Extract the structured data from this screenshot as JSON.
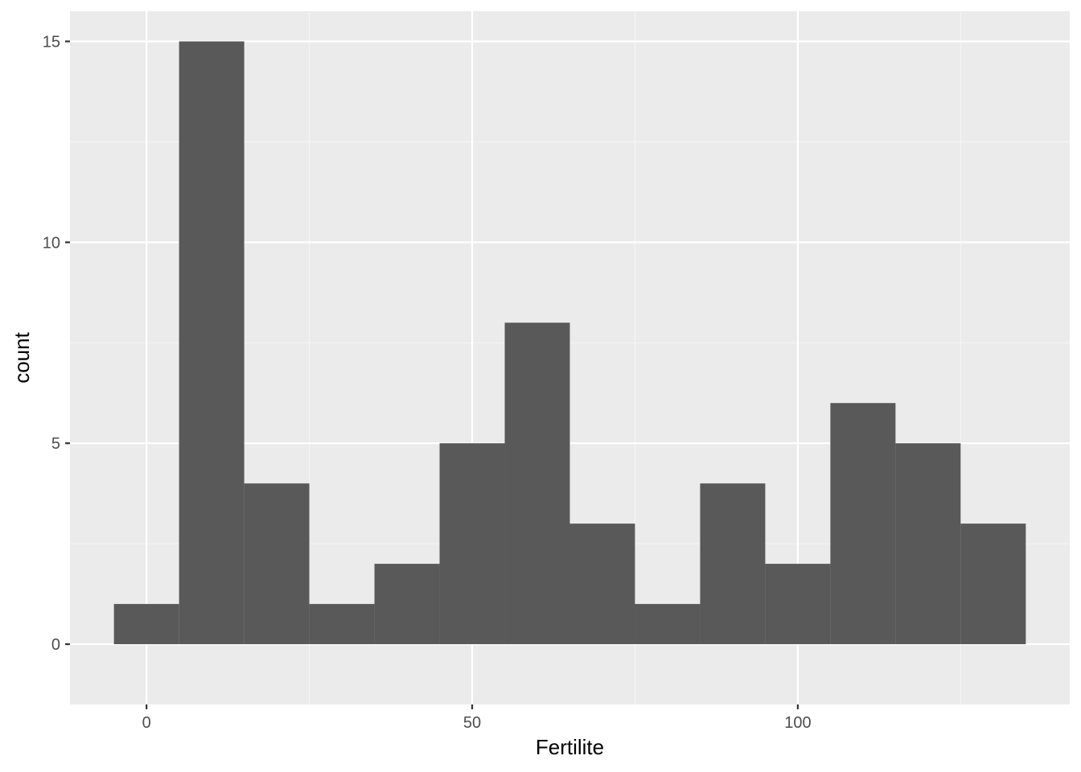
{
  "chart_data": {
    "type": "bar",
    "geom": "histogram",
    "xlabel": "Fertilite",
    "ylabel": "count",
    "bin_width": 10,
    "bins": [
      {
        "x_min": -5,
        "x_max": 5,
        "count": 1
      },
      {
        "x_min": 5,
        "x_max": 15,
        "count": 15
      },
      {
        "x_min": 15,
        "x_max": 25,
        "count": 4
      },
      {
        "x_min": 25,
        "x_max": 35,
        "count": 1
      },
      {
        "x_min": 35,
        "x_max": 45,
        "count": 2
      },
      {
        "x_min": 45,
        "x_max": 55,
        "count": 5
      },
      {
        "x_min": 55,
        "x_max": 65,
        "count": 8
      },
      {
        "x_min": 65,
        "x_max": 75,
        "count": 3
      },
      {
        "x_min": 75,
        "x_max": 85,
        "count": 1
      },
      {
        "x_min": 85,
        "x_max": 95,
        "count": 4
      },
      {
        "x_min": 95,
        "x_max": 105,
        "count": 2
      },
      {
        "x_min": 105,
        "x_max": 115,
        "count": 6
      },
      {
        "x_min": 115,
        "x_max": 125,
        "count": 5
      },
      {
        "x_min": 125,
        "x_max": 135,
        "count": 3
      }
    ],
    "xlim": [
      -11.75,
      141.75
    ],
    "ylim": [
      -1.5,
      15.75
    ],
    "x_ticks": [
      0,
      50,
      100
    ],
    "x_tick_labels": [
      "0",
      "50",
      "100"
    ],
    "x_minor_ticks": [
      25,
      75,
      125
    ],
    "y_ticks": [
      0,
      5,
      10,
      15
    ],
    "y_tick_labels": [
      "0",
      "5",
      "10",
      "15"
    ],
    "y_minor_ticks": [
      2.5,
      7.5,
      12.5
    ],
    "grid": true,
    "colors": {
      "panel_background": "#ebebeb",
      "grid_major": "#ffffff",
      "grid_minor": "#f5f5f5",
      "bar_fill": "#595959",
      "tick_mark": "#333333"
    }
  }
}
